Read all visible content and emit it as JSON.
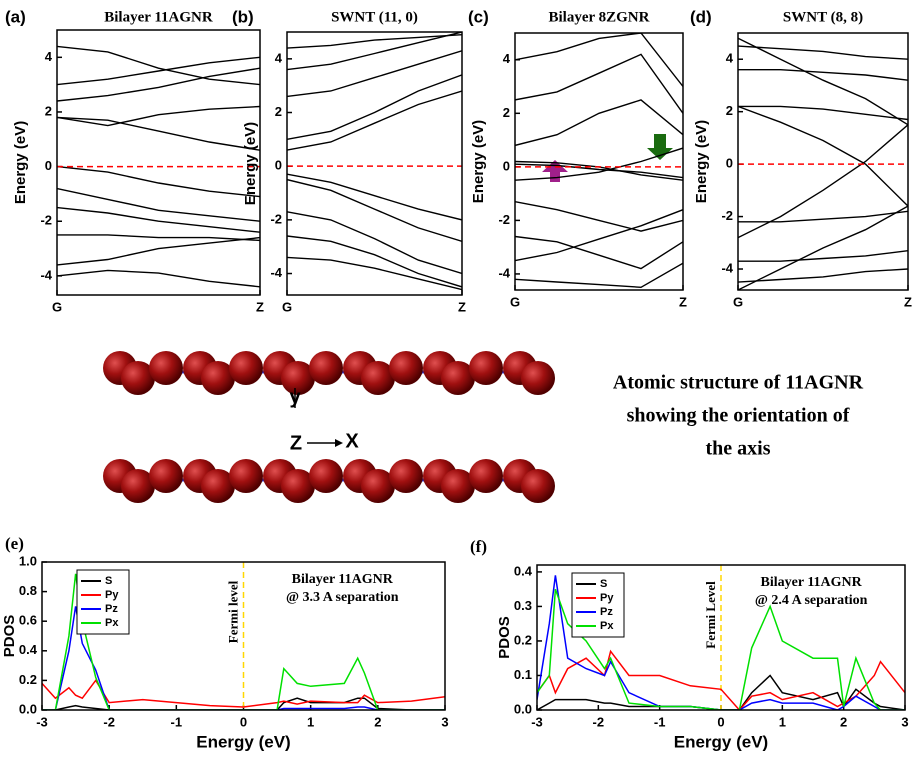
{
  "chart_data": [
    {
      "type": "band",
      "label": "(a)",
      "title": "Bilayer 11AGNR",
      "ylabel": "Energy (eV)",
      "x": [
        0,
        0.25,
        0.5,
        0.75,
        1
      ],
      "xlim": [
        0,
        1
      ],
      "xticks": [
        {
          "value": 0,
          "label": "G"
        },
        {
          "value": 1,
          "label": "Z"
        }
      ],
      "ylim": [
        -4.7,
        5
      ],
      "yticks": [
        -4,
        -2,
        0,
        2,
        4
      ],
      "color": "#000000",
      "hline": {
        "value": 0,
        "color": "#ff0000"
      },
      "bands": [
        [
          0,
          -0.2,
          -0.6,
          -0.9,
          -1.1
        ],
        [
          1.8,
          1.7,
          1.3,
          0.9,
          0.6
        ],
        [
          1.8,
          1.5,
          1.9,
          2.1,
          2.2
        ],
        [
          -1.5,
          -1.7,
          -2,
          -2.2,
          -2.4
        ],
        [
          -2.5,
          -2.5,
          -2.6,
          -2.6,
          -2.7
        ],
        [
          -3.6,
          -3.4,
          -3,
          -2.8,
          -2.6
        ],
        [
          3,
          3.2,
          3.5,
          3.8,
          4
        ],
        [
          4.4,
          4.2,
          3.6,
          3.2,
          3
        ],
        [
          -0.8,
          -1.2,
          -1.6,
          -1.8,
          -2
        ],
        [
          -4,
          -3.8,
          -3.9,
          -4.2,
          -4.4
        ],
        [
          2.4,
          2.6,
          2.9,
          3.3,
          3.6
        ]
      ]
    },
    {
      "type": "band",
      "label": "(b)",
      "title": "SWNT (11, 0)",
      "ylabel": "Energy (eV)",
      "x": [
        0,
        0.25,
        0.5,
        0.75,
        1
      ],
      "xlim": [
        0,
        1
      ],
      "xticks": [
        {
          "value": 0,
          "label": "G"
        },
        {
          "value": 1,
          "label": "Z"
        }
      ],
      "ylim": [
        -4.8,
        5
      ],
      "yticks": [
        -4,
        -2,
        0,
        2,
        4
      ],
      "color": "#000000",
      "hline": {
        "value": 0,
        "color": "#ff0000"
      },
      "bands": [
        [
          0.6,
          0.9,
          1.6,
          2.3,
          2.8
        ],
        [
          1,
          1.3,
          2,
          2.8,
          3.4
        ],
        [
          -0.3,
          -0.6,
          -1.1,
          -1.6,
          -2
        ],
        [
          -0.5,
          -0.9,
          -1.6,
          -2.3,
          -2.8
        ],
        [
          2.6,
          2.8,
          3.3,
          3.8,
          4.3
        ],
        [
          3.6,
          3.8,
          4.2,
          4.6,
          5
        ],
        [
          -1.7,
          -2,
          -2.7,
          -3.5,
          -4
        ],
        [
          -2.6,
          -2.8,
          -3.3,
          -4,
          -4.5
        ],
        [
          4.4,
          4.5,
          4.7,
          4.8,
          4.9
        ],
        [
          -3.4,
          -3.5,
          -3.8,
          -4.2,
          -4.6
        ]
      ]
    },
    {
      "type": "band",
      "label": "(c)",
      "title": "Bilayer 8ZGNR",
      "ylabel": "Energy (eV)",
      "x": [
        0,
        0.25,
        0.5,
        0.75,
        1
      ],
      "xlim": [
        0,
        1
      ],
      "xticks": [
        {
          "value": 0,
          "label": "G"
        },
        {
          "value": 1,
          "label": "Z"
        }
      ],
      "ylim": [
        -4.6,
        5
      ],
      "yticks": [
        -4,
        -2,
        0,
        2,
        4
      ],
      "color": "#000000",
      "hline": {
        "value": 0,
        "color": "#ff0000"
      },
      "bands": [
        [
          0.2,
          0.15,
          0,
          -0.3,
          -0.5
        ],
        [
          0.1,
          0.05,
          -0.1,
          -0.2,
          -0.4
        ],
        [
          -0.5,
          -0.4,
          -0.2,
          0.2,
          0.7
        ],
        [
          0.8,
          1.2,
          2,
          2.5,
          1.2
        ],
        [
          -1.3,
          -1.6,
          -2,
          -2.4,
          -2
        ],
        [
          -3.5,
          -3.2,
          -2.7,
          -2.2,
          -1.6
        ],
        [
          2.5,
          2.8,
          3.5,
          4.2,
          2
        ],
        [
          -2.6,
          -2.8,
          -3.3,
          -3.8,
          -2.8
        ],
        [
          4,
          4.3,
          4.8,
          5,
          3
        ],
        [
          -4.2,
          -4.3,
          -4.4,
          -4.5,
          -3.6
        ]
      ]
    },
    {
      "type": "band",
      "label": "(d)",
      "title": "SWNT (8, 8)",
      "ylabel": "Energy (eV)",
      "x": [
        0,
        0.25,
        0.5,
        0.75,
        1
      ],
      "xlim": [
        0,
        1
      ],
      "xticks": [
        {
          "value": 0,
          "label": "G"
        },
        {
          "value": 1,
          "label": "Z"
        }
      ],
      "ylim": [
        -4.8,
        5
      ],
      "yticks": [
        -4,
        -2,
        0,
        2,
        4
      ],
      "color": "#000000",
      "hline": {
        "value": 0,
        "color": "#ff0000"
      },
      "bands": [
        [
          -2.8,
          -2,
          -1,
          0.1,
          1.5
        ],
        [
          2.2,
          1.6,
          0.9,
          0,
          -1.6
        ],
        [
          4.8,
          4,
          3.2,
          2.5,
          1.5
        ],
        [
          -4.8,
          -4,
          -3.2,
          -2.5,
          -1.6
        ],
        [
          2.2,
          2.2,
          2.1,
          1.9,
          1.7
        ],
        [
          -2.2,
          -2.2,
          -2.1,
          -2,
          -1.8
        ],
        [
          3.6,
          3.6,
          3.5,
          3.4,
          3.2
        ],
        [
          -3.7,
          -3.7,
          -3.6,
          -3.5,
          -3.3
        ],
        [
          4.5,
          4.4,
          4.3,
          4.1,
          4
        ],
        [
          -4.5,
          -4.4,
          -4.3,
          -4.1,
          -4
        ]
      ]
    },
    {
      "type": "line",
      "label": "(e)",
      "ylabel": "PDOS",
      "xlabel": "Energy (eV)",
      "annotation": [
        "Bilayer 11AGNR",
        "@ 3.3 A separation"
      ],
      "legend": "upper left",
      "vline": {
        "value": 0,
        "label": "Fermi level",
        "color": "#ffd700"
      },
      "xlim": [
        -3,
        3
      ],
      "xticks": [
        -3,
        -2,
        -1,
        0,
        1,
        2,
        3
      ],
      "ylim": [
        0,
        1.0
      ],
      "yticks": [
        {
          "value": 0,
          "label": "0.0"
        },
        0.2,
        0.4,
        0.6,
        0.8,
        {
          "value": 1,
          "label": "1.0"
        }
      ],
      "x": [
        -3,
        -2.8,
        -2.6,
        -2.5,
        -2.4,
        -2.2,
        -2,
        -1.5,
        -1,
        -0.5,
        0,
        0.5,
        0.6,
        0.8,
        1,
        1.5,
        1.7,
        1.8,
        2,
        2.5,
        3
      ],
      "series": [
        {
          "name": "S",
          "color": "#000000",
          "values": [
            0,
            0,
            0.02,
            0.03,
            0.02,
            0.01,
            0,
            0,
            0,
            0,
            0,
            0,
            0.05,
            0.08,
            0.05,
            0.05,
            0.08,
            0.08,
            0.01,
            0,
            0
          ]
        },
        {
          "name": "Py",
          "color": "#ff0000",
          "values": [
            0.18,
            0.08,
            0.15,
            0.1,
            0.08,
            0.2,
            0.05,
            0.07,
            0.05,
            0.03,
            0.02,
            0.05,
            0.06,
            0.04,
            0.06,
            0.05,
            0.05,
            0.1,
            0.05,
            0.06,
            0.09
          ]
        },
        {
          "name": "Pz",
          "color": "#0000ff",
          "values": [
            0,
            0,
            0.4,
            0.7,
            0.45,
            0.27,
            0,
            0,
            0,
            0,
            0,
            0,
            0.01,
            0.01,
            0.01,
            0.01,
            0.02,
            0.02,
            0,
            0,
            0
          ]
        },
        {
          "name": "Px",
          "color": "#00e000",
          "values": [
            0,
            0,
            0.5,
            0.92,
            0.6,
            0.22,
            0,
            0,
            0,
            0,
            0,
            0,
            0.28,
            0.18,
            0.16,
            0.18,
            0.35,
            0.25,
            0,
            0,
            0
          ]
        }
      ]
    },
    {
      "type": "line",
      "label": "(f)",
      "ylabel": "PDOS",
      "xlabel": "Energy (eV)",
      "annotation": [
        "Bilayer 11AGNR",
        "@ 2.4 A separation"
      ],
      "legend": "upper left",
      "vline": {
        "value": 0,
        "label": "Fermi Level",
        "color": "#ffd700"
      },
      "xlim": [
        -3,
        3
      ],
      "xticks": [
        -3,
        -2,
        -1,
        0,
        1,
        2,
        3
      ],
      "ylim": [
        0,
        0.42
      ],
      "yticks": [
        {
          "value": 0,
          "label": "0.0"
        },
        0.1,
        0.2,
        0.3,
        0.4
      ],
      "x": [
        -3,
        -2.8,
        -2.7,
        -2.5,
        -2.2,
        -1.9,
        -1.8,
        -1.5,
        -1,
        -0.5,
        0,
        0.3,
        0.5,
        0.8,
        1,
        1.5,
        1.9,
        2,
        2.2,
        2.5,
        2.6,
        3
      ],
      "series": [
        {
          "name": "S",
          "color": "#000000",
          "values": [
            0,
            0.02,
            0.03,
            0.03,
            0.03,
            0.02,
            0.02,
            0.01,
            0.01,
            0.01,
            0,
            0,
            0.05,
            0.1,
            0.05,
            0.03,
            0.05,
            0.01,
            0.06,
            0.02,
            0.01,
            0
          ]
        },
        {
          "name": "Py",
          "color": "#ff0000",
          "values": [
            0.05,
            0.1,
            0.05,
            0.12,
            0.15,
            0.1,
            0.17,
            0.1,
            0.1,
            0.07,
            0.06,
            0,
            0.04,
            0.05,
            0.03,
            0.05,
            0.01,
            0.02,
            0.04,
            0.1,
            0.14,
            0.05
          ]
        },
        {
          "name": "Pz",
          "color": "#0000ff",
          "values": [
            0.03,
            0.25,
            0.39,
            0.15,
            0.12,
            0.1,
            0.14,
            0.05,
            0.01,
            0.01,
            0,
            0,
            0.02,
            0.03,
            0.02,
            0.02,
            0,
            0.01,
            0.04,
            0.01,
            0,
            0
          ]
        },
        {
          "name": "Px",
          "color": "#00e000",
          "values": [
            0.05,
            0.1,
            0.35,
            0.25,
            0.2,
            0.12,
            0.15,
            0.02,
            0.01,
            0.01,
            0,
            0,
            0.18,
            0.3,
            0.2,
            0.15,
            0.15,
            0.01,
            0.15,
            0.02,
            0,
            0
          ]
        }
      ]
    }
  ],
  "structure": {
    "axis_labels": [
      "y",
      "Z",
      "X"
    ],
    "caption": [
      "Atomic structure of 11AGNR",
      "showing the orientation of",
      "the axis"
    ]
  }
}
